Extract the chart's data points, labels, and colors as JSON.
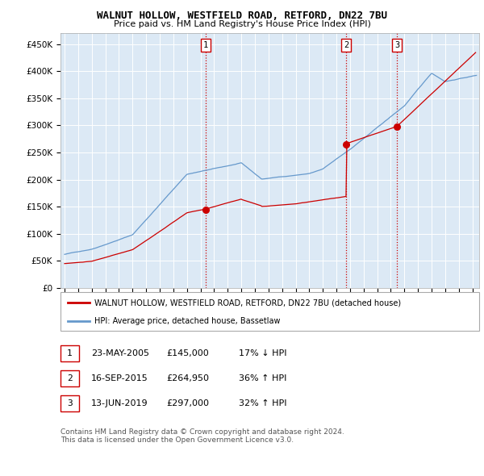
{
  "title": "WALNUT HOLLOW, WESTFIELD ROAD, RETFORD, DN22 7BU",
  "subtitle": "Price paid vs. HM Land Registry's House Price Index (HPI)",
  "ylabel_ticks": [
    "£0",
    "£50K",
    "£100K",
    "£150K",
    "£200K",
    "£250K",
    "£300K",
    "£350K",
    "£400K",
    "£450K"
  ],
  "ytick_values": [
    0,
    50000,
    100000,
    150000,
    200000,
    250000,
    300000,
    350000,
    400000,
    450000
  ],
  "ylim": [
    0,
    470000
  ],
  "xlim_start": 1994.7,
  "xlim_end": 2025.5,
  "transaction_dates": [
    2005.38,
    2015.71,
    2019.45
  ],
  "transaction_prices": [
    145000,
    264950,
    297000
  ],
  "transaction_labels": [
    "1",
    "2",
    "3"
  ],
  "vline_color": "#cc0000",
  "legend_red_label": "WALNUT HOLLOW, WESTFIELD ROAD, RETFORD, DN22 7BU (detached house)",
  "legend_blue_label": "HPI: Average price, detached house, Bassetlaw",
  "table_rows": [
    [
      "1",
      "23-MAY-2005",
      "£145,000",
      "17% ↓ HPI"
    ],
    [
      "2",
      "16-SEP-2015",
      "£264,950",
      "36% ↑ HPI"
    ],
    [
      "3",
      "13-JUN-2019",
      "£297,000",
      "32% ↑ HPI"
    ]
  ],
  "footer": "Contains HM Land Registry data © Crown copyright and database right 2024.\nThis data is licensed under the Open Government Licence v3.0.",
  "background_color": "#ffffff",
  "plot_bg_color": "#dce9f5",
  "grid_color": "#ffffff",
  "red_line_color": "#cc0000",
  "blue_line_color": "#6699cc",
  "hpi_seed": 42,
  "red_seed": 10
}
